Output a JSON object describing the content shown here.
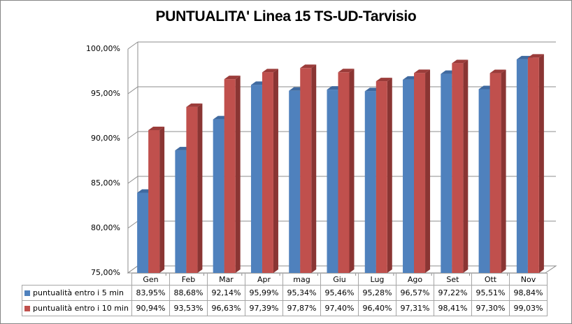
{
  "chart_data": {
    "type": "bar",
    "title": "PUNTUALITA' Linea 15 TS-UD-Tarvisio",
    "xlabel": "",
    "ylabel": "",
    "ylim": [
      75,
      100
    ],
    "yticks": [
      "75,00%",
      "80,00%",
      "85,00%",
      "90,00%",
      "95,00%",
      "100,00%"
    ],
    "grid": true,
    "legend_position": "data-table",
    "categories": [
      "Gen",
      "Feb",
      "Mar",
      "Apr",
      "mag",
      "Giu",
      "Lug",
      "Ago",
      "Set",
      "Ott",
      "Nov"
    ],
    "series": [
      {
        "name": "puntualità entro i 5 min",
        "color": "#4f81bd",
        "values": [
          83.95,
          88.68,
          92.14,
          95.99,
          95.34,
          95.46,
          95.28,
          96.57,
          97.22,
          95.51,
          98.84
        ],
        "labels": [
          "83,95%",
          "88,68%",
          "92,14%",
          "95,99%",
          "95,34%",
          "95,46%",
          "95,28%",
          "96,57%",
          "97,22%",
          "95,51%",
          "98,84%"
        ]
      },
      {
        "name": "puntualità entro i 10 min",
        "color": "#c0504d",
        "values": [
          90.94,
          93.53,
          96.63,
          97.39,
          97.87,
          97.4,
          96.4,
          97.31,
          98.41,
          97.3,
          99.03
        ],
        "labels": [
          "90,94%",
          "93,53%",
          "96,63%",
          "97,39%",
          "97,87%",
          "97,40%",
          "96,40%",
          "97,31%",
          "98,41%",
          "97,30%",
          "99,03%"
        ]
      }
    ]
  }
}
